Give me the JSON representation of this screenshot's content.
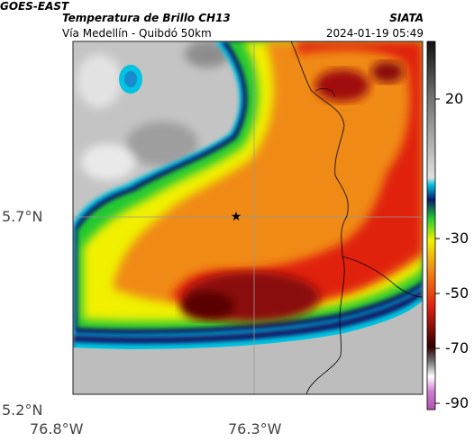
{
  "header": {
    "satellite": "GOES-EAST",
    "product": "Temperatura de Brillo CH13",
    "location": "Vía Medellín - Quibdó 50km",
    "organization": "SIATA",
    "datetime": "2024-01-19 05:49"
  },
  "axes": {
    "lat_labels": [
      "5.7°N",
      "5.2°N"
    ],
    "lon_labels": [
      "76.8°W",
      "76.3°W"
    ]
  },
  "colorbar": {
    "labels": [
      "20",
      "-30",
      "-50",
      "-70",
      "-90"
    ]
  },
  "colors": {
    "gray_high": "#c8c8c8",
    "cyan": "#00b4d8",
    "blue": "#0a1a6a",
    "green": "#22c832",
    "yellow": "#f0f000",
    "orange": "#f08a14",
    "red": "#e02010",
    "dark_red": "#8a0a0a"
  }
}
